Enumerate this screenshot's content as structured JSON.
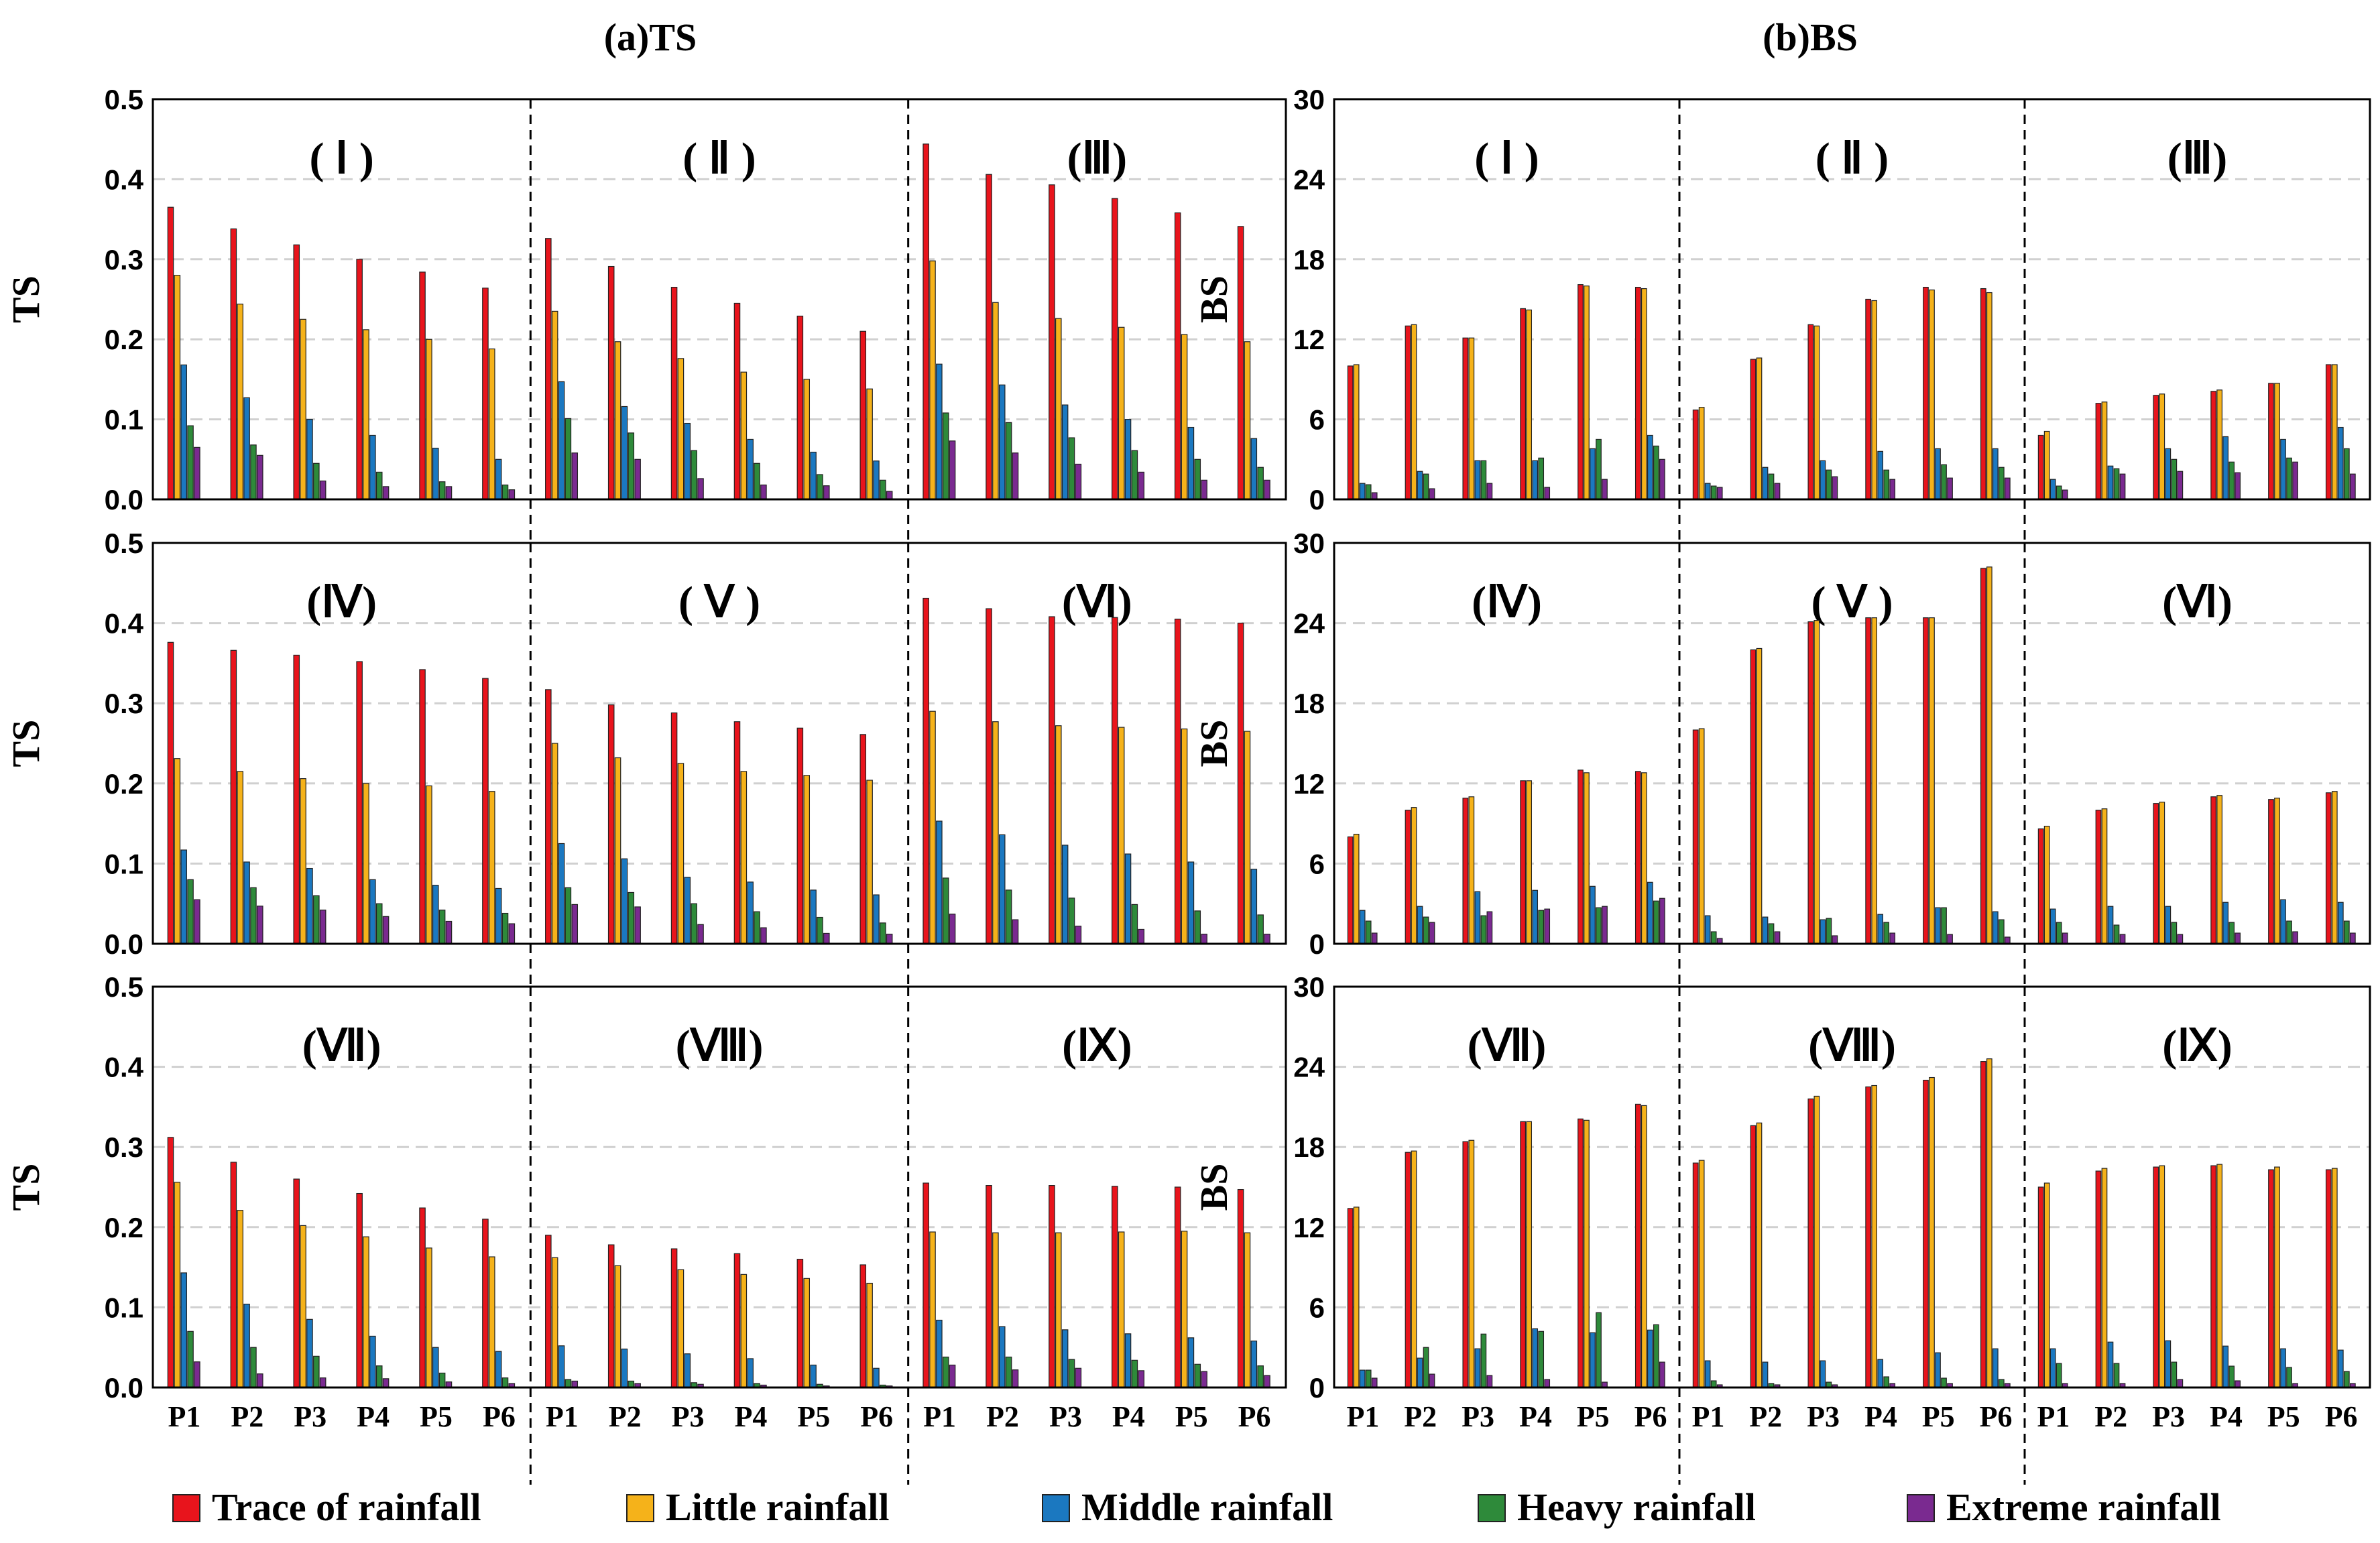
{
  "titles": {
    "ts": "(a)TS",
    "bs": "(b)BS"
  },
  "ylabels": {
    "ts": "TS",
    "bs": "BS"
  },
  "colors": {
    "trace": "#e8141c",
    "little": "#f5b21a",
    "middle": "#1b78c0",
    "heavy": "#2e8a3a",
    "extreme": "#7a2a90",
    "grid": "#d0d0d0",
    "axis": "#000000"
  },
  "legend": [
    {
      "key": "trace",
      "label": "Trace of rainfall"
    },
    {
      "key": "little",
      "label": "Little rainfall"
    },
    {
      "key": "middle",
      "label": "Middle rainfall"
    },
    {
      "key": "heavy",
      "label": "Heavy rainfall"
    },
    {
      "key": "extreme",
      "label": "Extreme rainfall"
    }
  ],
  "chart_data": [
    {
      "type": "bar",
      "title": "(a)TS",
      "ylabel": "TS",
      "ylim": [
        0,
        0.5
      ],
      "yticks": [
        "0.0",
        "0.1",
        "0.2",
        "0.3",
        "0.4",
        "0.5"
      ],
      "categories": [
        "P1",
        "P2",
        "P3",
        "P4",
        "P5",
        "P6"
      ],
      "series_names": [
        "Trace of rainfall",
        "Little rainfall",
        "Middle rainfall",
        "Heavy rainfall",
        "Extreme rainfall"
      ],
      "panels": [
        {
          "label": "( Ⅰ )",
          "values": [
            [
              0.365,
              0.28,
              0.168,
              0.092,
              0.065
            ],
            [
              0.338,
              0.244,
              0.127,
              0.068,
              0.055
            ],
            [
              0.318,
              0.225,
              0.1,
              0.045,
              0.023
            ],
            [
              0.3,
              0.212,
              0.08,
              0.034,
              0.016
            ],
            [
              0.284,
              0.2,
              0.064,
              0.022,
              0.016
            ],
            [
              0.264,
              0.188,
              0.05,
              0.018,
              0.012
            ]
          ]
        },
        {
          "label": "( Ⅱ )",
          "values": [
            [
              0.326,
              0.235,
              0.147,
              0.101,
              0.058
            ],
            [
              0.291,
              0.197,
              0.116,
              0.083,
              0.05
            ],
            [
              0.265,
              0.176,
              0.095,
              0.061,
              0.026
            ],
            [
              0.245,
              0.159,
              0.075,
              0.045,
              0.018
            ],
            [
              0.229,
              0.15,
              0.059,
              0.031,
              0.017
            ],
            [
              0.21,
              0.138,
              0.048,
              0.024,
              0.01
            ]
          ]
        },
        {
          "label": "(Ⅲ)",
          "values": [
            [
              0.444,
              0.298,
              0.169,
              0.108,
              0.073
            ],
            [
              0.406,
              0.246,
              0.143,
              0.096,
              0.058
            ],
            [
              0.393,
              0.226,
              0.118,
              0.077,
              0.044
            ],
            [
              0.376,
              0.215,
              0.1,
              0.061,
              0.034
            ],
            [
              0.358,
              0.206,
              0.09,
              0.05,
              0.024
            ],
            [
              0.341,
              0.197,
              0.076,
              0.04,
              0.024
            ]
          ]
        },
        {
          "label": "(Ⅳ)",
          "values": [
            [
              0.376,
              0.231,
              0.117,
              0.08,
              0.055
            ],
            [
              0.366,
              0.215,
              0.102,
              0.07,
              0.047
            ],
            [
              0.36,
              0.206,
              0.094,
              0.06,
              0.042
            ],
            [
              0.352,
              0.2,
              0.08,
              0.05,
              0.034
            ],
            [
              0.342,
              0.197,
              0.073,
              0.042,
              0.028
            ],
            [
              0.331,
              0.19,
              0.069,
              0.038,
              0.025
            ]
          ]
        },
        {
          "label": "( Ⅴ )",
          "values": [
            [
              0.317,
              0.25,
              0.125,
              0.07,
              0.049
            ],
            [
              0.298,
              0.232,
              0.106,
              0.064,
              0.046
            ],
            [
              0.288,
              0.225,
              0.083,
              0.05,
              0.024
            ],
            [
              0.277,
              0.215,
              0.077,
              0.04,
              0.02
            ],
            [
              0.269,
              0.21,
              0.067,
              0.033,
              0.013
            ],
            [
              0.261,
              0.204,
              0.061,
              0.026,
              0.012
            ]
          ]
        },
        {
          "label": "(Ⅵ)",
          "values": [
            [
              0.431,
              0.29,
              0.153,
              0.082,
              0.037
            ],
            [
              0.418,
              0.277,
              0.136,
              0.067,
              0.03
            ],
            [
              0.408,
              0.272,
              0.123,
              0.057,
              0.022
            ],
            [
              0.407,
              0.27,
              0.112,
              0.049,
              0.018
            ],
            [
              0.405,
              0.268,
              0.102,
              0.041,
              0.012
            ],
            [
              0.4,
              0.265,
              0.093,
              0.036,
              0.012
            ]
          ]
        },
        {
          "label": "(Ⅶ)",
          "values": [
            [
              0.312,
              0.256,
              0.143,
              0.07,
              0.032
            ],
            [
              0.281,
              0.221,
              0.104,
              0.05,
              0.017
            ],
            [
              0.26,
              0.202,
              0.085,
              0.039,
              0.012
            ],
            [
              0.242,
              0.188,
              0.064,
              0.027,
              0.011
            ],
            [
              0.224,
              0.174,
              0.05,
              0.018,
              0.007
            ],
            [
              0.21,
              0.163,
              0.045,
              0.012,
              0.005
            ]
          ]
        },
        {
          "label": "(Ⅷ)",
          "values": [
            [
              0.19,
              0.162,
              0.052,
              0.01,
              0.008
            ],
            [
              0.178,
              0.152,
              0.048,
              0.008,
              0.005
            ],
            [
              0.173,
              0.147,
              0.042,
              0.006,
              0.004
            ],
            [
              0.167,
              0.141,
              0.036,
              0.005,
              0.003
            ],
            [
              0.16,
              0.136,
              0.028,
              0.004,
              0.002
            ],
            [
              0.153,
              0.13,
              0.024,
              0.003,
              0.002
            ]
          ]
        },
        {
          "label": "(Ⅸ)",
          "values": [
            [
              0.255,
              0.194,
              0.084,
              0.038,
              0.028
            ],
            [
              0.252,
              0.193,
              0.076,
              0.038,
              0.022
            ],
            [
              0.252,
              0.193,
              0.072,
              0.035,
              0.024
            ],
            [
              0.251,
              0.194,
              0.067,
              0.034,
              0.021
            ],
            [
              0.25,
              0.195,
              0.062,
              0.029,
              0.02
            ],
            [
              0.247,
              0.193,
              0.058,
              0.027,
              0.015
            ]
          ]
        }
      ]
    },
    {
      "type": "bar",
      "title": "(b)BS",
      "ylabel": "BS",
      "ylim": [
        0,
        30
      ],
      "yticks": [
        "0",
        "6",
        "12",
        "18",
        "24",
        "30"
      ],
      "categories": [
        "P1",
        "P2",
        "P3",
        "P4",
        "P5",
        "P6"
      ],
      "series_names": [
        "Trace of rainfall",
        "Little rainfall",
        "Middle rainfall",
        "Heavy rainfall",
        "Extreme rainfall"
      ],
      "panels": [
        {
          "label": "( Ⅰ )",
          "values": [
            [
              10.0,
              10.1,
              1.2,
              1.1,
              0.5
            ],
            [
              13.0,
              13.1,
              2.1,
              1.9,
              0.8
            ],
            [
              12.1,
              12.1,
              2.9,
              2.9,
              1.2
            ],
            [
              14.3,
              14.2,
              2.9,
              3.1,
              0.9
            ],
            [
              16.1,
              16.0,
              3.8,
              4.5,
              1.5
            ],
            [
              15.9,
              15.8,
              4.8,
              4.0,
              3.0
            ]
          ]
        },
        {
          "label": "( Ⅱ )",
          "values": [
            [
              6.7,
              6.9,
              1.2,
              1.0,
              0.9
            ],
            [
              10.5,
              10.6,
              2.4,
              1.9,
              1.2
            ],
            [
              13.1,
              13.0,
              2.9,
              2.2,
              1.7
            ],
            [
              15.0,
              14.9,
              3.6,
              2.2,
              1.5
            ],
            [
              15.9,
              15.7,
              3.8,
              2.6,
              1.6
            ],
            [
              15.8,
              15.5,
              3.8,
              2.4,
              1.6
            ]
          ]
        },
        {
          "label": "(Ⅲ)",
          "values": [
            [
              4.8,
              5.1,
              1.5,
              1.0,
              0.7
            ],
            [
              7.2,
              7.3,
              2.5,
              2.3,
              1.9
            ],
            [
              7.8,
              7.9,
              3.8,
              3.0,
              2.1
            ],
            [
              8.1,
              8.2,
              4.7,
              2.8,
              2.0
            ],
            [
              8.7,
              8.7,
              4.5,
              3.1,
              2.8
            ],
            [
              10.1,
              10.1,
              5.4,
              3.8,
              1.9
            ]
          ]
        },
        {
          "label": "(Ⅳ)",
          "values": [
            [
              8.0,
              8.2,
              2.5,
              1.7,
              0.8
            ],
            [
              10.0,
              10.2,
              2.8,
              2.0,
              1.6
            ],
            [
              10.9,
              11.0,
              3.9,
              2.1,
              2.4
            ],
            [
              12.2,
              12.2,
              4.0,
              2.5,
              2.6
            ],
            [
              13.0,
              12.8,
              4.3,
              2.7,
              2.8
            ],
            [
              12.9,
              12.8,
              4.6,
              3.2,
              3.4
            ]
          ]
        },
        {
          "label": "( Ⅴ )",
          "values": [
            [
              16.0,
              16.1,
              2.1,
              0.9,
              0.4
            ],
            [
              22.0,
              22.1,
              2.0,
              1.5,
              0.9
            ],
            [
              24.1,
              24.2,
              1.8,
              1.9,
              0.6
            ],
            [
              24.4,
              24.4,
              2.2,
              1.6,
              0.8
            ],
            [
              24.4,
              24.4,
              2.7,
              2.7,
              0.7
            ],
            [
              28.1,
              28.2,
              2.4,
              1.8,
              0.5
            ]
          ]
        },
        {
          "label": "(Ⅵ)",
          "values": [
            [
              8.6,
              8.8,
              2.6,
              1.6,
              0.8
            ],
            [
              10.0,
              10.1,
              2.8,
              1.4,
              0.7
            ],
            [
              10.5,
              10.6,
              2.8,
              1.6,
              0.7
            ],
            [
              11.0,
              11.1,
              3.1,
              1.6,
              0.8
            ],
            [
              10.8,
              10.9,
              3.3,
              1.7,
              0.9
            ],
            [
              11.3,
              11.4,
              3.1,
              1.7,
              0.8
            ]
          ]
        },
        {
          "label": "(Ⅶ)",
          "values": [
            [
              13.4,
              13.5,
              1.3,
              1.3,
              0.7
            ],
            [
              17.6,
              17.7,
              2.2,
              3.0,
              1.0
            ],
            [
              18.4,
              18.5,
              2.9,
              4.0,
              0.9
            ],
            [
              19.9,
              19.9,
              4.4,
              4.2,
              0.6
            ],
            [
              20.1,
              20.0,
              4.1,
              5.6,
              0.4
            ],
            [
              21.2,
              21.1,
              4.3,
              4.7,
              1.9
            ]
          ]
        },
        {
          "label": "(Ⅷ)",
          "values": [
            [
              16.8,
              17.0,
              2.0,
              0.5,
              0.2
            ],
            [
              19.6,
              19.8,
              1.9,
              0.3,
              0.2
            ],
            [
              21.6,
              21.8,
              2.0,
              0.4,
              0.2
            ],
            [
              22.5,
              22.6,
              2.1,
              0.8,
              0.3
            ],
            [
              23.0,
              23.2,
              2.6,
              0.7,
              0.3
            ],
            [
              24.4,
              24.6,
              2.9,
              0.6,
              0.3
            ]
          ]
        },
        {
          "label": "(Ⅸ)",
          "values": [
            [
              15.0,
              15.3,
              2.9,
              1.8,
              0.3
            ],
            [
              16.2,
              16.4,
              3.4,
              1.8,
              0.3
            ],
            [
              16.5,
              16.6,
              3.5,
              1.9,
              0.6
            ],
            [
              16.6,
              16.7,
              3.1,
              1.6,
              0.5
            ],
            [
              16.3,
              16.5,
              2.9,
              1.5,
              0.3
            ],
            [
              16.3,
              16.4,
              2.8,
              1.2,
              0.3
            ]
          ]
        }
      ]
    }
  ]
}
